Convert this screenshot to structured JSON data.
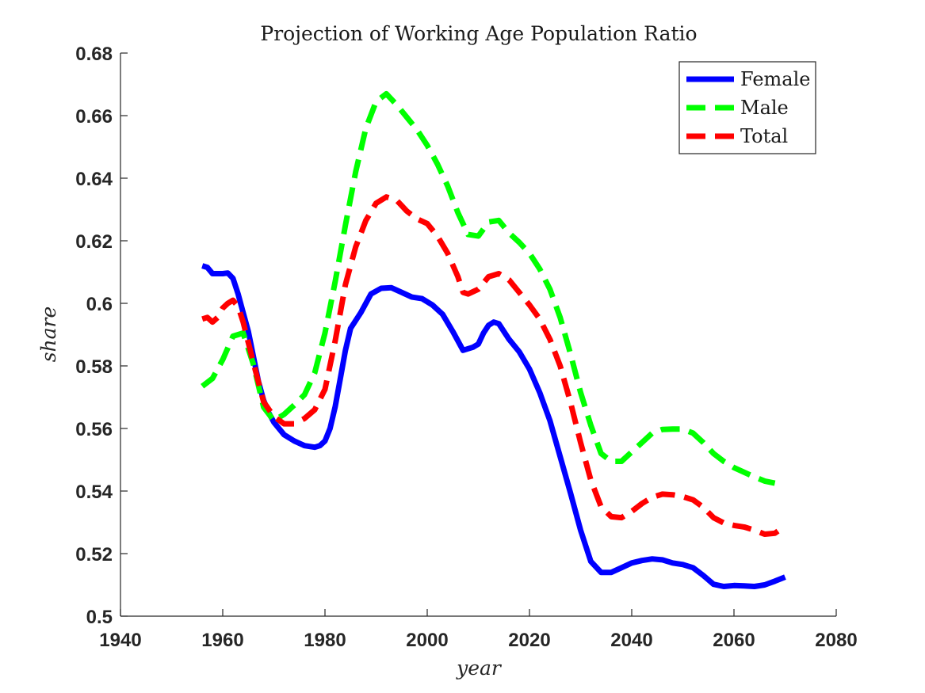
{
  "chart_data": {
    "type": "line",
    "title": "Projection of Working Age Population Ratio",
    "xlabel": "year",
    "ylabel": "share",
    "xlim": [
      1940,
      2080
    ],
    "ylim": [
      0.5,
      0.68
    ],
    "xticks": [
      1940,
      1960,
      1980,
      2000,
      2020,
      2040,
      2060,
      2080
    ],
    "yticks": [
      0.5,
      0.52,
      0.54,
      0.56,
      0.58,
      0.6,
      0.62,
      0.64,
      0.66,
      0.68
    ],
    "ytick_labels": [
      "0.5",
      "0.52",
      "0.54",
      "0.56",
      "0.58",
      "0.6",
      "0.62",
      "0.64",
      "0.66",
      "0.68"
    ],
    "grid": false,
    "legend_position": "top-right",
    "series": [
      {
        "name": "Female",
        "color": "#0000ff",
        "style": "solid",
        "x": [
          1956,
          1957,
          1958,
          1959,
          1960,
          1961,
          1962,
          1963,
          1964,
          1965,
          1966,
          1967,
          1968,
          1969,
          1970,
          1972,
          1974,
          1976,
          1978,
          1979,
          1980,
          1981,
          1982,
          1983,
          1984,
          1985,
          1987,
          1989,
          1991,
          1993,
          1995,
          1997,
          1999,
          2001,
          2003,
          2005,
          2007,
          2009,
          2010,
          2011,
          2012,
          2013,
          2014,
          2016,
          2018,
          2020,
          2022,
          2024,
          2026,
          2028,
          2030,
          2032,
          2034,
          2036,
          2038,
          2040,
          2042,
          2044,
          2046,
          2048,
          2050,
          2052,
          2054,
          2056,
          2058,
          2060,
          2062,
          2064,
          2066,
          2068,
          2070
        ],
        "y": [
          0.612,
          0.6115,
          0.6095,
          0.6095,
          0.6095,
          0.6097,
          0.608,
          0.603,
          0.597,
          0.591,
          0.583,
          0.575,
          0.569,
          0.565,
          0.562,
          0.558,
          0.556,
          0.5545,
          0.554,
          0.5545,
          0.556,
          0.56,
          0.567,
          0.576,
          0.585,
          0.592,
          0.597,
          0.603,
          0.6048,
          0.605,
          0.6035,
          0.602,
          0.6015,
          0.5995,
          0.5965,
          0.591,
          0.585,
          0.586,
          0.587,
          0.5905,
          0.593,
          0.594,
          0.5935,
          0.5885,
          0.5845,
          0.579,
          0.5715,
          0.5625,
          0.551,
          0.5395,
          0.5275,
          0.5175,
          0.514,
          0.514,
          0.5155,
          0.517,
          0.5178,
          0.5183,
          0.518,
          0.517,
          0.5165,
          0.5155,
          0.513,
          0.5102,
          0.5095,
          0.5098,
          0.5097,
          0.5095,
          0.51,
          0.5112,
          0.5125
        ]
      },
      {
        "name": "Male",
        "color": "#00ff00",
        "style": "dashed",
        "x": [
          1956,
          1958,
          1960,
          1962,
          1964,
          1966,
          1968,
          1970,
          1972,
          1974,
          1976,
          1978,
          1980,
          1982,
          1984,
          1986,
          1988,
          1990,
          1992,
          1994,
          1996,
          1998,
          2000,
          2002,
          2004,
          2006,
          2008,
          2010,
          2012,
          2014,
          2016,
          2018,
          2020,
          2022,
          2024,
          2026,
          2028,
          2030,
          2032,
          2034,
          2036,
          2038,
          2040,
          2042,
          2044,
          2046,
          2048,
          2050,
          2052,
          2054,
          2056,
          2058,
          2060,
          2062,
          2064,
          2066,
          2068
        ],
        "y": [
          0.5735,
          0.576,
          0.582,
          0.5895,
          0.5905,
          0.5805,
          0.5668,
          0.5625,
          0.5645,
          0.5675,
          0.5708,
          0.5778,
          0.5905,
          0.607,
          0.625,
          0.642,
          0.656,
          0.6645,
          0.667,
          0.6635,
          0.6595,
          0.6555,
          0.6505,
          0.6445,
          0.6375,
          0.629,
          0.622,
          0.6215,
          0.626,
          0.6265,
          0.6225,
          0.6195,
          0.616,
          0.611,
          0.6045,
          0.5955,
          0.584,
          0.5715,
          0.561,
          0.552,
          0.5495,
          0.5495,
          0.5525,
          0.5555,
          0.5585,
          0.5597,
          0.5598,
          0.5598,
          0.5585,
          0.5555,
          0.552,
          0.5495,
          0.5475,
          0.546,
          0.5445,
          0.5432,
          0.5425
        ]
      },
      {
        "name": "Total",
        "color": "#ff0000",
        "style": "dashed",
        "x": [
          1956,
          1957,
          1958,
          1959,
          1960,
          1961,
          1962,
          1963,
          1964,
          1966,
          1968,
          1970,
          1972,
          1974,
          1976,
          1978,
          1980,
          1982,
          1984,
          1986,
          1988,
          1990,
          1992,
          1994,
          1996,
          1998,
          2000,
          2002,
          2004,
          2006,
          2007,
          2008,
          2010,
          2012,
          2014,
          2016,
          2018,
          2020,
          2022,
          2024,
          2026,
          2028,
          2030,
          2032,
          2034,
          2036,
          2038,
          2040,
          2042,
          2044,
          2046,
          2048,
          2050,
          2052,
          2054,
          2056,
          2058,
          2060,
          2062,
          2064,
          2066,
          2068,
          2070
        ],
        "y": [
          0.595,
          0.5955,
          0.594,
          0.5955,
          0.5985,
          0.6,
          0.601,
          0.599,
          0.594,
          0.581,
          0.5685,
          0.5638,
          0.5615,
          0.5615,
          0.5632,
          0.566,
          0.5725,
          0.588,
          0.606,
          0.618,
          0.6265,
          0.632,
          0.634,
          0.633,
          0.6295,
          0.627,
          0.6255,
          0.6215,
          0.616,
          0.6085,
          0.6035,
          0.603,
          0.6045,
          0.6085,
          0.6095,
          0.6075,
          0.6035,
          0.5995,
          0.595,
          0.5885,
          0.58,
          0.5685,
          0.5555,
          0.5435,
          0.535,
          0.5318,
          0.5315,
          0.5335,
          0.536,
          0.538,
          0.539,
          0.5388,
          0.5382,
          0.5372,
          0.5348,
          0.5315,
          0.5298,
          0.529,
          0.5285,
          0.5275,
          0.5262,
          0.5265,
          0.5288
        ]
      }
    ]
  }
}
